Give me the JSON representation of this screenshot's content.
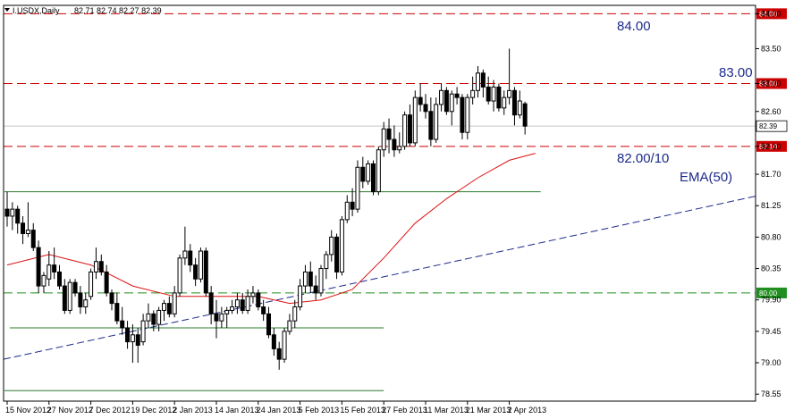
{
  "chart_data": {
    "type": "candlestick",
    "header": {
      "symbol_label": "I.USDX,Daily",
      "ohlc_text": "82.71 82.74 82.27 82.39"
    },
    "current_price": "82.39",
    "y_axis": {
      "min": 78.45,
      "max": 84.12,
      "ticks": [
        "84.00",
        "83.50",
        "83.00",
        "82.60",
        "82.10",
        "81.70",
        "81.25",
        "80.80",
        "80.35",
        "79.90",
        "79.45",
        "79.00",
        "78.55"
      ]
    },
    "x_axis": {
      "labels": [
        {
          "text": "15 Nov 2012",
          "index": 0
        },
        {
          "text": "27 Nov 2012",
          "index": 8
        },
        {
          "text": "7 Dec 2012",
          "index": 16
        },
        {
          "text": "19 Dec 2012",
          "index": 24
        },
        {
          "text": "2 Jan 2013",
          "index": 32
        },
        {
          "text": "14 Jan 2013",
          "index": 40
        },
        {
          "text": "24 Jan 2013",
          "index": 48
        },
        {
          "text": "5 Feb 2013",
          "index": 56
        },
        {
          "text": "15 Feb 2013",
          "index": 64
        },
        {
          "text": "27 Feb 2013",
          "index": 72
        },
        {
          "text": "11 Mar 2013",
          "index": 80
        },
        {
          "text": "21 Mar 2013",
          "index": 88
        },
        {
          "text": "2 Apr 2013",
          "index": 96
        }
      ]
    },
    "candles": [
      {
        "o": 81.2,
        "h": 81.45,
        "l": 80.95,
        "c": 81.1
      },
      {
        "o": 81.1,
        "h": 81.3,
        "l": 80.9,
        "c": 81.2
      },
      {
        "o": 81.2,
        "h": 81.25,
        "l": 80.85,
        "c": 81.0
      },
      {
        "o": 81.0,
        "h": 81.1,
        "l": 80.7,
        "c": 80.85
      },
      {
        "o": 80.85,
        "h": 81.3,
        "l": 80.8,
        "c": 80.9
      },
      {
        "o": 80.9,
        "h": 81.0,
        "l": 80.6,
        "c": 80.65
      },
      {
        "o": 80.65,
        "h": 80.75,
        "l": 80.0,
        "c": 80.1
      },
      {
        "o": 80.1,
        "h": 80.3,
        "l": 80.0,
        "c": 80.25
      },
      {
        "o": 80.2,
        "h": 80.6,
        "l": 80.1,
        "c": 80.4
      },
      {
        "o": 80.4,
        "h": 80.65,
        "l": 80.2,
        "c": 80.3
      },
      {
        "o": 80.3,
        "h": 80.4,
        "l": 80.05,
        "c": 80.1
      },
      {
        "o": 80.1,
        "h": 80.2,
        "l": 79.7,
        "c": 79.75
      },
      {
        "o": 79.75,
        "h": 80.2,
        "l": 79.7,
        "c": 80.15
      },
      {
        "o": 80.15,
        "h": 80.2,
        "l": 79.95,
        "c": 80.0
      },
      {
        "o": 80.0,
        "h": 80.1,
        "l": 79.7,
        "c": 79.8
      },
      {
        "o": 79.8,
        "h": 80.0,
        "l": 79.7,
        "c": 79.9
      },
      {
        "o": 79.95,
        "h": 80.35,
        "l": 79.9,
        "c": 80.3
      },
      {
        "o": 80.3,
        "h": 80.65,
        "l": 80.2,
        "c": 80.45
      },
      {
        "o": 80.45,
        "h": 80.55,
        "l": 80.25,
        "c": 80.3
      },
      {
        "o": 80.3,
        "h": 80.4,
        "l": 79.95,
        "c": 80.0
      },
      {
        "o": 80.0,
        "h": 80.05,
        "l": 79.75,
        "c": 79.85
      },
      {
        "o": 79.85,
        "h": 80.0,
        "l": 79.55,
        "c": 79.6
      },
      {
        "o": 79.6,
        "h": 79.8,
        "l": 79.4,
        "c": 79.5
      },
      {
        "o": 79.5,
        "h": 79.6,
        "l": 79.2,
        "c": 79.3
      },
      {
        "o": 79.3,
        "h": 79.55,
        "l": 79.0,
        "c": 79.4
      },
      {
        "o": 79.4,
        "h": 79.5,
        "l": 79.0,
        "c": 79.25
      },
      {
        "o": 79.3,
        "h": 79.7,
        "l": 79.25,
        "c": 79.6
      },
      {
        "o": 79.6,
        "h": 79.85,
        "l": 79.5,
        "c": 79.7
      },
      {
        "o": 79.7,
        "h": 79.75,
        "l": 79.45,
        "c": 79.55
      },
      {
        "o": 79.55,
        "h": 79.8,
        "l": 79.45,
        "c": 79.75
      },
      {
        "o": 79.75,
        "h": 79.9,
        "l": 79.6,
        "c": 79.85
      },
      {
        "o": 79.85,
        "h": 79.95,
        "l": 79.65,
        "c": 79.7
      },
      {
        "o": 79.7,
        "h": 80.1,
        "l": 79.65,
        "c": 80.0
      },
      {
        "o": 80.0,
        "h": 80.55,
        "l": 79.95,
        "c": 80.5
      },
      {
        "o": 80.5,
        "h": 80.95,
        "l": 80.4,
        "c": 80.6
      },
      {
        "o": 80.6,
        "h": 80.7,
        "l": 80.3,
        "c": 80.4
      },
      {
        "o": 80.4,
        "h": 80.5,
        "l": 80.1,
        "c": 80.2
      },
      {
        "o": 80.2,
        "h": 80.65,
        "l": 80.15,
        "c": 80.6
      },
      {
        "o": 80.6,
        "h": 80.65,
        "l": 79.95,
        "c": 80.0
      },
      {
        "o": 80.0,
        "h": 80.1,
        "l": 79.55,
        "c": 79.7
      },
      {
        "o": 79.7,
        "h": 79.9,
        "l": 79.35,
        "c": 79.6
      },
      {
        "o": 79.6,
        "h": 79.8,
        "l": 79.5,
        "c": 79.7
      },
      {
        "o": 79.7,
        "h": 79.8,
        "l": 79.5,
        "c": 79.75
      },
      {
        "o": 79.75,
        "h": 79.9,
        "l": 79.7,
        "c": 79.8
      },
      {
        "o": 79.8,
        "h": 80.0,
        "l": 79.7,
        "c": 79.9
      },
      {
        "o": 79.9,
        "h": 80.0,
        "l": 79.7,
        "c": 79.75
      },
      {
        "o": 79.75,
        "h": 80.05,
        "l": 79.7,
        "c": 79.95
      },
      {
        "o": 79.95,
        "h": 80.1,
        "l": 79.85,
        "c": 80.0
      },
      {
        "o": 80.0,
        "h": 80.05,
        "l": 79.75,
        "c": 79.8
      },
      {
        "o": 79.8,
        "h": 79.9,
        "l": 79.6,
        "c": 79.7
      },
      {
        "o": 79.7,
        "h": 79.8,
        "l": 79.35,
        "c": 79.4
      },
      {
        "o": 79.4,
        "h": 79.5,
        "l": 79.1,
        "c": 79.2
      },
      {
        "o": 79.2,
        "h": 79.3,
        "l": 78.9,
        "c": 79.05
      },
      {
        "o": 79.05,
        "h": 79.5,
        "l": 79.0,
        "c": 79.45
      },
      {
        "o": 79.45,
        "h": 79.7,
        "l": 79.4,
        "c": 79.6
      },
      {
        "o": 79.6,
        "h": 79.9,
        "l": 79.5,
        "c": 79.8
      },
      {
        "o": 79.8,
        "h": 80.2,
        "l": 79.75,
        "c": 80.1
      },
      {
        "o": 80.1,
        "h": 80.4,
        "l": 80.0,
        "c": 80.3
      },
      {
        "o": 80.3,
        "h": 80.45,
        "l": 80.0,
        "c": 80.1
      },
      {
        "o": 80.1,
        "h": 80.25,
        "l": 79.9,
        "c": 80.0
      },
      {
        "o": 80.0,
        "h": 80.4,
        "l": 79.95,
        "c": 80.35
      },
      {
        "o": 80.35,
        "h": 80.6,
        "l": 80.2,
        "c": 80.55
      },
      {
        "o": 80.55,
        "h": 80.9,
        "l": 80.45,
        "c": 80.8
      },
      {
        "o": 80.8,
        "h": 80.85,
        "l": 80.2,
        "c": 80.3
      },
      {
        "o": 80.3,
        "h": 81.1,
        "l": 80.25,
        "c": 81.05
      },
      {
        "o": 81.05,
        "h": 81.4,
        "l": 81.0,
        "c": 81.3
      },
      {
        "o": 81.3,
        "h": 81.5,
        "l": 81.1,
        "c": 81.2
      },
      {
        "o": 81.2,
        "h": 81.9,
        "l": 81.15,
        "c": 81.8
      },
      {
        "o": 81.8,
        "h": 81.95,
        "l": 81.5,
        "c": 81.6
      },
      {
        "o": 81.6,
        "h": 81.9,
        "l": 81.55,
        "c": 81.85
      },
      {
        "o": 81.85,
        "h": 81.9,
        "l": 81.4,
        "c": 81.45
      },
      {
        "o": 81.45,
        "h": 82.1,
        "l": 81.4,
        "c": 82.05
      },
      {
        "o": 82.05,
        "h": 82.45,
        "l": 81.95,
        "c": 82.35
      },
      {
        "o": 82.35,
        "h": 82.5,
        "l": 82.0,
        "c": 82.2
      },
      {
        "o": 82.2,
        "h": 82.4,
        "l": 81.95,
        "c": 82.05
      },
      {
        "o": 82.05,
        "h": 82.3,
        "l": 82.0,
        "c": 82.1
      },
      {
        "o": 82.1,
        "h": 82.6,
        "l": 82.05,
        "c": 82.55
      },
      {
        "o": 82.55,
        "h": 82.7,
        "l": 82.1,
        "c": 82.15
      },
      {
        "o": 82.15,
        "h": 82.9,
        "l": 82.1,
        "c": 82.8
      },
      {
        "o": 82.8,
        "h": 83.0,
        "l": 82.6,
        "c": 82.7
      },
      {
        "o": 82.7,
        "h": 82.85,
        "l": 82.5,
        "c": 82.6
      },
      {
        "o": 82.6,
        "h": 82.8,
        "l": 82.1,
        "c": 82.2
      },
      {
        "o": 82.2,
        "h": 82.8,
        "l": 82.15,
        "c": 82.7
      },
      {
        "o": 82.7,
        "h": 83.0,
        "l": 82.6,
        "c": 82.9
      },
      {
        "o": 82.9,
        "h": 82.95,
        "l": 82.55,
        "c": 82.6
      },
      {
        "o": 82.6,
        "h": 82.9,
        "l": 82.4,
        "c": 82.85
      },
      {
        "o": 82.85,
        "h": 82.95,
        "l": 82.7,
        "c": 82.8
      },
      {
        "o": 82.8,
        "h": 82.85,
        "l": 82.2,
        "c": 82.3
      },
      {
        "o": 82.3,
        "h": 82.85,
        "l": 82.2,
        "c": 82.8
      },
      {
        "o": 82.8,
        "h": 83.1,
        "l": 82.7,
        "c": 82.9
      },
      {
        "o": 82.9,
        "h": 83.25,
        "l": 82.8,
        "c": 83.15
      },
      {
        "o": 83.15,
        "h": 83.2,
        "l": 82.8,
        "c": 82.95
      },
      {
        "o": 82.95,
        "h": 83.1,
        "l": 82.7,
        "c": 82.75
      },
      {
        "o": 82.75,
        "h": 83.05,
        "l": 82.6,
        "c": 82.95
      },
      {
        "o": 82.95,
        "h": 83.0,
        "l": 82.6,
        "c": 82.65
      },
      {
        "o": 82.65,
        "h": 82.9,
        "l": 82.55,
        "c": 82.8
      },
      {
        "o": 82.8,
        "h": 83.5,
        "l": 82.7,
        "c": 82.9
      },
      {
        "o": 82.9,
        "h": 82.95,
        "l": 82.4,
        "c": 82.55
      },
      {
        "o": 82.55,
        "h": 82.9,
        "l": 82.5,
        "c": 82.75
      },
      {
        "o": 82.71,
        "h": 82.74,
        "l": 82.27,
        "c": 82.39
      }
    ],
    "ema": {
      "label": "EMA(50)",
      "points": [
        [
          0,
          80.4
        ],
        [
          8,
          80.55
        ],
        [
          16,
          80.4
        ],
        [
          24,
          80.1
        ],
        [
          32,
          79.95
        ],
        [
          40,
          79.95
        ],
        [
          48,
          79.95
        ],
        [
          54,
          79.85
        ],
        [
          60,
          79.9
        ],
        [
          66,
          80.05
        ],
        [
          72,
          80.5
        ],
        [
          78,
          81.0
        ],
        [
          84,
          81.35
        ],
        [
          90,
          81.65
        ],
        [
          96,
          81.9
        ],
        [
          101,
          82.0
        ]
      ]
    },
    "trendline_blue": {
      "from": [
        0,
        79.05
      ],
      "to": [
        107,
        80.8
      ]
    },
    "horizontal_levels": [
      {
        "value": 84.0,
        "tag": "84.00",
        "label": "84.00",
        "style": "dash",
        "color": "#cc0000"
      },
      {
        "value": 83.0,
        "tag": "83.00",
        "label": "83.00",
        "style": "dash",
        "color": "#cc0000"
      },
      {
        "value": 82.1,
        "tag": "82.10",
        "label": "82.00/10",
        "style": "dash",
        "color": "#cc0000"
      },
      {
        "value": 80.0,
        "tag": "80.00",
        "label": "",
        "style": "dash",
        "color": "#1f8f1f"
      }
    ],
    "green_lines": [
      {
        "value": 81.45,
        "from": 0,
        "to": 102
      },
      {
        "value": 79.5,
        "from": 1,
        "to": 72
      },
      {
        "value": 78.6,
        "from": 0,
        "to": 72
      }
    ]
  }
}
